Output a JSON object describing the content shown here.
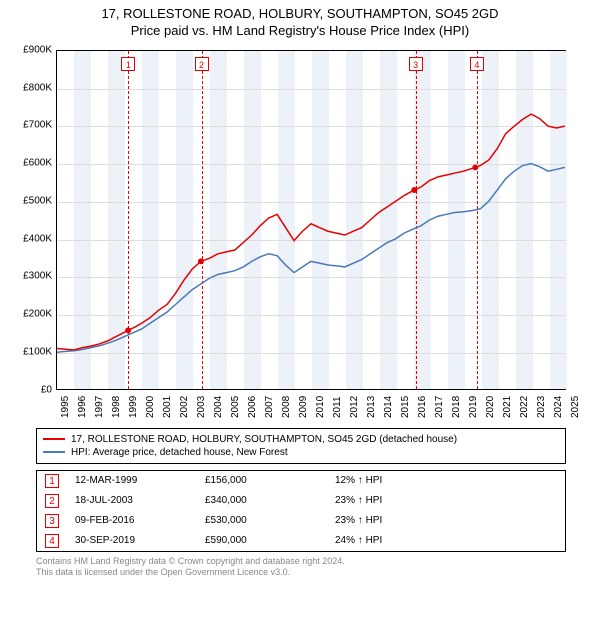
{
  "title": {
    "line1": "17, ROLLESTONE ROAD, HOLBURY, SOUTHAMPTON, SO45 2GD",
    "line2": "Price paid vs. HM Land Registry's House Price Index (HPI)"
  },
  "chart": {
    "type": "line",
    "background_color": "#ffffff",
    "plot_border_color": "#000000",
    "grid_color": "#dddddd",
    "shade_color": "#edf1f8",
    "xlim": [
      1995,
      2025
    ],
    "ylim": [
      0,
      900000
    ],
    "ytick_step": 100000,
    "y_ticks": [
      "£0",
      "£100K",
      "£200K",
      "£300K",
      "£400K",
      "£500K",
      "£600K",
      "£700K",
      "£800K",
      "£900K"
    ],
    "x_ticks": [
      "1995",
      "1996",
      "1997",
      "1998",
      "1999",
      "2000",
      "2001",
      "2002",
      "2003",
      "2004",
      "2005",
      "2006",
      "2007",
      "2008",
      "2009",
      "2010",
      "2011",
      "2012",
      "2013",
      "2014",
      "2015",
      "2016",
      "2017",
      "2018",
      "2019",
      "2020",
      "2021",
      "2022",
      "2023",
      "2024",
      "2025"
    ],
    "label_fontsize": 10,
    "title_fontsize": 13,
    "series": [
      {
        "name": "17, ROLLESTONE ROAD, HOLBURY, SOUTHAMPTON, SO45 2GD (detached house)",
        "color": "#e60000",
        "line_width": 1.5,
        "data": [
          [
            1995.0,
            108000
          ],
          [
            1995.5,
            106000
          ],
          [
            1996.0,
            104000
          ],
          [
            1996.5,
            110000
          ],
          [
            1997.0,
            114000
          ],
          [
            1997.5,
            120000
          ],
          [
            1998.0,
            128000
          ],
          [
            1998.5,
            140000
          ],
          [
            1999.2,
            156000
          ],
          [
            1999.6,
            165000
          ],
          [
            2000.0,
            175000
          ],
          [
            2000.5,
            190000
          ],
          [
            2001.0,
            210000
          ],
          [
            2001.5,
            225000
          ],
          [
            2002.0,
            255000
          ],
          [
            2002.5,
            290000
          ],
          [
            2003.0,
            320000
          ],
          [
            2003.5,
            340000
          ],
          [
            2004.0,
            348000
          ],
          [
            2004.5,
            360000
          ],
          [
            2005.0,
            365000
          ],
          [
            2005.5,
            370000
          ],
          [
            2006.0,
            390000
          ],
          [
            2006.5,
            410000
          ],
          [
            2007.0,
            435000
          ],
          [
            2007.5,
            455000
          ],
          [
            2008.0,
            465000
          ],
          [
            2008.5,
            430000
          ],
          [
            2009.0,
            395000
          ],
          [
            2009.5,
            420000
          ],
          [
            2010.0,
            440000
          ],
          [
            2010.5,
            430000
          ],
          [
            2011.0,
            420000
          ],
          [
            2011.5,
            415000
          ],
          [
            2012.0,
            410000
          ],
          [
            2012.5,
            420000
          ],
          [
            2013.0,
            430000
          ],
          [
            2013.5,
            450000
          ],
          [
            2014.0,
            470000
          ],
          [
            2014.5,
            485000
          ],
          [
            2015.0,
            500000
          ],
          [
            2015.5,
            515000
          ],
          [
            2016.1,
            530000
          ],
          [
            2016.5,
            538000
          ],
          [
            2017.0,
            555000
          ],
          [
            2017.5,
            565000
          ],
          [
            2018.0,
            570000
          ],
          [
            2018.5,
            575000
          ],
          [
            2019.0,
            580000
          ],
          [
            2019.7,
            590000
          ],
          [
            2020.0,
            595000
          ],
          [
            2020.5,
            610000
          ],
          [
            2021.0,
            640000
          ],
          [
            2021.5,
            680000
          ],
          [
            2022.0,
            700000
          ],
          [
            2022.5,
            718000
          ],
          [
            2023.0,
            732000
          ],
          [
            2023.5,
            720000
          ],
          [
            2024.0,
            700000
          ],
          [
            2024.5,
            695000
          ],
          [
            2025.0,
            700000
          ]
        ]
      },
      {
        "name": "HPI: Average price, detached house, New Forest",
        "color": "#4a7ab8",
        "line_width": 1.2,
        "data": [
          [
            1995.0,
            98000
          ],
          [
            1995.5,
            100000
          ],
          [
            1996.0,
            102000
          ],
          [
            1996.5,
            105000
          ],
          [
            1997.0,
            110000
          ],
          [
            1997.5,
            115000
          ],
          [
            1998.0,
            122000
          ],
          [
            1998.5,
            130000
          ],
          [
            1999.0,
            140000
          ],
          [
            1999.5,
            150000
          ],
          [
            2000.0,
            160000
          ],
          [
            2000.5,
            175000
          ],
          [
            2001.0,
            190000
          ],
          [
            2001.5,
            205000
          ],
          [
            2002.0,
            225000
          ],
          [
            2002.5,
            245000
          ],
          [
            2003.0,
            265000
          ],
          [
            2003.5,
            280000
          ],
          [
            2004.0,
            295000
          ],
          [
            2004.5,
            305000
          ],
          [
            2005.0,
            310000
          ],
          [
            2005.5,
            315000
          ],
          [
            2006.0,
            325000
          ],
          [
            2006.5,
            340000
          ],
          [
            2007.0,
            352000
          ],
          [
            2007.5,
            360000
          ],
          [
            2008.0,
            355000
          ],
          [
            2008.5,
            330000
          ],
          [
            2009.0,
            310000
          ],
          [
            2009.5,
            325000
          ],
          [
            2010.0,
            340000
          ],
          [
            2010.5,
            335000
          ],
          [
            2011.0,
            330000
          ],
          [
            2011.5,
            328000
          ],
          [
            2012.0,
            325000
          ],
          [
            2012.5,
            335000
          ],
          [
            2013.0,
            345000
          ],
          [
            2013.5,
            360000
          ],
          [
            2014.0,
            375000
          ],
          [
            2014.5,
            390000
          ],
          [
            2015.0,
            400000
          ],
          [
            2015.5,
            415000
          ],
          [
            2016.0,
            425000
          ],
          [
            2016.5,
            435000
          ],
          [
            2017.0,
            450000
          ],
          [
            2017.5,
            460000
          ],
          [
            2018.0,
            465000
          ],
          [
            2018.5,
            470000
          ],
          [
            2019.0,
            472000
          ],
          [
            2019.5,
            475000
          ],
          [
            2020.0,
            480000
          ],
          [
            2020.5,
            500000
          ],
          [
            2021.0,
            530000
          ],
          [
            2021.5,
            560000
          ],
          [
            2022.0,
            580000
          ],
          [
            2022.5,
            595000
          ],
          [
            2023.0,
            600000
          ],
          [
            2023.5,
            592000
          ],
          [
            2024.0,
            580000
          ],
          [
            2024.5,
            585000
          ],
          [
            2025.0,
            590000
          ]
        ]
      }
    ],
    "markers": [
      {
        "n": "1",
        "x": 1999.2,
        "y": 156000
      },
      {
        "n": "2",
        "x": 2003.5,
        "y": 340000
      },
      {
        "n": "3",
        "x": 2016.1,
        "y": 530000
      },
      {
        "n": "4",
        "x": 2019.7,
        "y": 590000
      }
    ],
    "marker_color": "#e60000",
    "marker_point_radius": 3
  },
  "legend": {
    "rows": [
      {
        "color": "#e60000",
        "label": "17, ROLLESTONE ROAD, HOLBURY, SOUTHAMPTON, SO45 2GD (detached house)"
      },
      {
        "color": "#4a7ab8",
        "label": "HPI: Average price, detached house, New Forest"
      }
    ]
  },
  "table": {
    "rows": [
      {
        "n": "1",
        "date": "12-MAR-1999",
        "price": "£156,000",
        "delta": "12% ↑ HPI"
      },
      {
        "n": "2",
        "date": "18-JUL-2003",
        "price": "£340,000",
        "delta": "23% ↑ HPI"
      },
      {
        "n": "3",
        "date": "09-FEB-2016",
        "price": "£530,000",
        "delta": "23% ↑ HPI"
      },
      {
        "n": "4",
        "date": "30-SEP-2019",
        "price": "£590,000",
        "delta": "24% ↑ HPI"
      }
    ]
  },
  "footer": {
    "line1": "Contains HM Land Registry data © Crown copyright and database right 2024.",
    "line2": "This data is licensed under the Open Government Licence v3.0."
  }
}
